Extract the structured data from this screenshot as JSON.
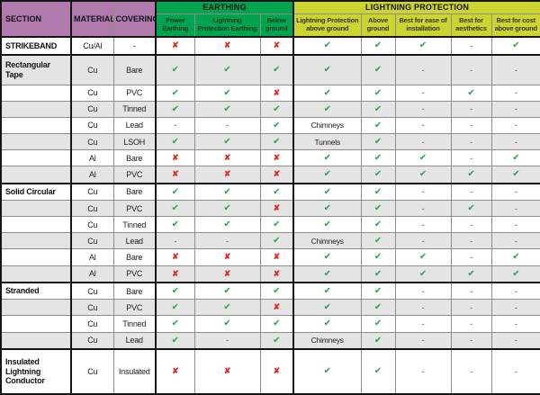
{
  "colors": {
    "header_purple": "#b17aac",
    "header_green": "#00a44f",
    "header_yellow": "#ccd430",
    "row_stripe_gray": "#e4e4e4",
    "check_green": "#2aa152",
    "cross_red": "#e22a21"
  },
  "symbols": {
    "check": "✔",
    "cross": "✘",
    "dash": "-"
  },
  "header": {
    "section": "SECTION",
    "material": "MATERIAL",
    "covering": "COVERING",
    "earthing_group": "EARTHING",
    "lightning_group": "LIGHTNING PROTECTION",
    "subcolumns": [
      "Power Earthing",
      "Lightning Protection Earthing",
      "Below ground",
      "Lightning Protection above ground",
      "Above ground",
      "Best for ease of installation",
      "Best for aesthetics",
      "Best for cost above ground"
    ]
  },
  "rows": [
    {
      "section": "STRIKEBAND",
      "material": "Cu/Al",
      "covering": "-",
      "section_start": false,
      "values": [
        "no",
        "no",
        "no",
        "yes",
        "yes",
        "yes",
        "-",
        "yes"
      ]
    },
    {
      "section": "Rectangular Tape",
      "material": "Cu",
      "covering": "Bare",
      "section_start": true,
      "values": [
        "yes",
        "yes",
        "yes",
        "yes",
        "yes",
        "-",
        "-",
        "-"
      ]
    },
    {
      "section": "",
      "material": "Cu",
      "covering": "PVC",
      "section_start": false,
      "values": [
        "yes",
        "yes",
        "no",
        "yes",
        "yes",
        "-",
        "yes",
        "-"
      ]
    },
    {
      "section": "",
      "material": "Cu",
      "covering": "Tinned",
      "section_start": false,
      "values": [
        "yes",
        "yes",
        "yes",
        "yes",
        "yes",
        "-",
        "-",
        "-"
      ]
    },
    {
      "section": "",
      "material": "Cu",
      "covering": "Lead",
      "section_start": false,
      "values": [
        "-",
        "-",
        "yes",
        "Chimneys",
        "yes",
        "-",
        "-",
        "-"
      ]
    },
    {
      "section": "",
      "material": "Cu",
      "covering": "LSOH",
      "section_start": false,
      "values": [
        "yes",
        "yes",
        "yes",
        "Tunnels",
        "yes",
        "-",
        "-",
        "-"
      ]
    },
    {
      "section": "",
      "material": "Al",
      "covering": "Bare",
      "section_start": false,
      "values": [
        "no",
        "no",
        "no",
        "yes",
        "yes",
        "yes",
        "-",
        "yes"
      ]
    },
    {
      "section": "",
      "material": "Al",
      "covering": "PVC",
      "section_start": false,
      "values": [
        "no",
        "no",
        "no",
        "yes",
        "yes",
        "yes",
        "yes",
        "yes"
      ]
    },
    {
      "section": "Solid Circular",
      "material": "Cu",
      "covering": "Bare",
      "section_start": true,
      "values": [
        "yes",
        "yes",
        "yes",
        "yes",
        "yes",
        "-",
        "-",
        "-"
      ]
    },
    {
      "section": "",
      "material": "Cu",
      "covering": "PVC",
      "section_start": false,
      "values": [
        "yes",
        "yes",
        "no",
        "yes",
        "yes",
        "-",
        "yes",
        "-"
      ]
    },
    {
      "section": "",
      "material": "Cu",
      "covering": "Tinned",
      "section_start": false,
      "values": [
        "yes",
        "yes",
        "yes",
        "yes",
        "yes",
        "-",
        "-",
        "-"
      ]
    },
    {
      "section": "",
      "material": "Cu",
      "covering": "Lead",
      "section_start": false,
      "values": [
        "-",
        "-",
        "yes",
        "Chimneys",
        "yes",
        "-",
        "-",
        "-"
      ]
    },
    {
      "section": "",
      "material": "Al",
      "covering": "Bare",
      "section_start": false,
      "values": [
        "no",
        "no",
        "no",
        "yes",
        "yes",
        "yes",
        "-",
        "yes"
      ]
    },
    {
      "section": "",
      "material": "Al",
      "covering": "PVC",
      "section_start": false,
      "values": [
        "no",
        "no",
        "no",
        "yes",
        "yes",
        "yes",
        "yes",
        "yes"
      ]
    },
    {
      "section": "Stranded",
      "material": "Cu",
      "covering": "Bare",
      "section_start": true,
      "values": [
        "yes",
        "yes",
        "yes",
        "yes",
        "yes",
        "-",
        "-",
        "-"
      ]
    },
    {
      "section": "",
      "material": "Cu",
      "covering": "PVC",
      "section_start": false,
      "values": [
        "yes",
        "yes",
        "no",
        "yes",
        "yes",
        "-",
        "-",
        "-"
      ]
    },
    {
      "section": "",
      "material": "Cu",
      "covering": "Tinned",
      "section_start": false,
      "values": [
        "yes",
        "yes",
        "yes",
        "yes",
        "yes",
        "-",
        "-",
        "-"
      ]
    },
    {
      "section": "",
      "material": "Cu",
      "covering": "Lead",
      "section_start": false,
      "values": [
        "yes",
        "-",
        "yes",
        "Chimneys",
        "yes",
        "-",
        "-",
        "-"
      ]
    },
    {
      "section": "Insulated Lightning Conductor",
      "material": "Cu",
      "covering": "Insulated",
      "section_start": true,
      "values": [
        "no",
        "no",
        "no",
        "yes",
        "yes",
        "-",
        "-",
        "-"
      ]
    }
  ]
}
